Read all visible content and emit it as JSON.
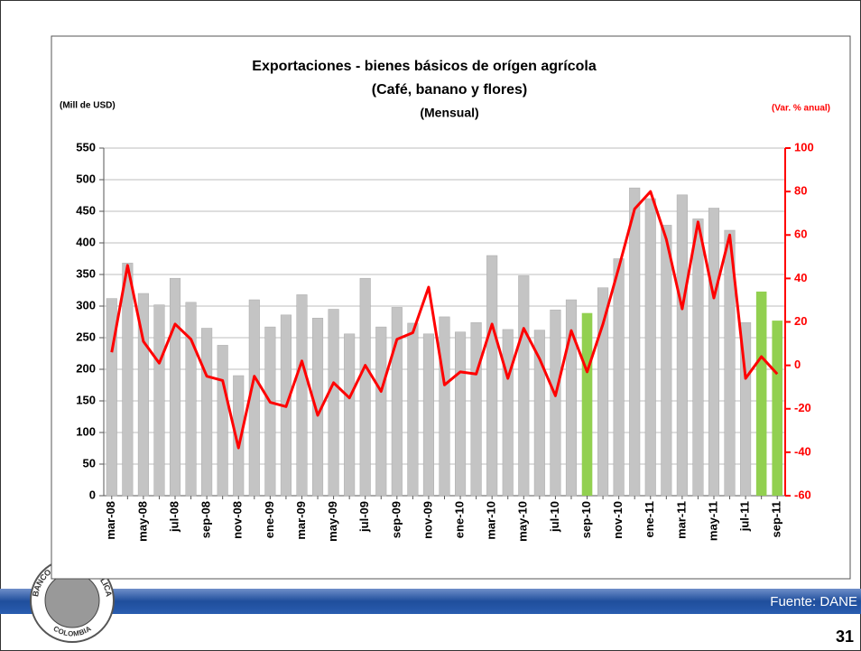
{
  "chart_data": {
    "type": "bar_line",
    "title": "Exportaciones - bienes básicos de orígen agrícola",
    "subtitle": "(Café, banano y flores)",
    "period": "(Mensual)",
    "y_label": "(Mill de USD)",
    "y2_label": "(Var. % anual)",
    "categories": [
      "mar-08",
      null,
      "may-08",
      null,
      "jul-08",
      null,
      "sep-08",
      null,
      "nov-08",
      null,
      "ene-09",
      null,
      "mar-09",
      null,
      "may-09",
      null,
      "jul-09",
      null,
      "sep-09",
      null,
      "nov-09",
      null,
      "ene-10",
      null,
      "mar-10",
      null,
      "may-10",
      null,
      "jul-10",
      null,
      "sep-10",
      null,
      "nov-10",
      null,
      "ene-11",
      null,
      "mar-11",
      null,
      "may-11",
      null,
      "jul-11",
      null,
      "sep-11"
    ],
    "series": [
      {
        "type": "bar",
        "color": "#c4c4c4",
        "highlight_color": "#92d050",
        "highlight": [
          false,
          false,
          false,
          false,
          false,
          false,
          false,
          false,
          false,
          false,
          false,
          false,
          false,
          false,
          false,
          false,
          false,
          false,
          false,
          false,
          false,
          false,
          false,
          false,
          false,
          false,
          false,
          false,
          false,
          false,
          true,
          false,
          false,
          false,
          false,
          false,
          false,
          false,
          false,
          false,
          false,
          true,
          true
        ],
        "values": [
          312,
          368,
          320,
          302,
          344,
          306,
          265,
          238,
          190,
          310,
          267,
          286,
          318,
          281,
          295,
          256,
          344,
          267,
          298,
          273,
          256,
          283,
          259,
          274,
          380,
          263,
          348,
          262,
          294,
          310,
          289,
          329,
          375,
          487,
          470,
          428,
          476,
          438,
          455,
          420,
          274,
          323,
          277
        ]
      },
      {
        "type": "line",
        "color": "#ff0000",
        "axis": "y2",
        "values": [
          6,
          46,
          11,
          1,
          19,
          12,
          -5,
          -7,
          -38,
          -5,
          -17,
          -19,
          2,
          -23,
          -8,
          -15,
          0,
          -12,
          12,
          15,
          36,
          -9,
          -3,
          -4,
          19,
          -6,
          17,
          3,
          -14,
          16,
          -3,
          19,
          45,
          72,
          80,
          58,
          26,
          66,
          31,
          60,
          -6,
          4,
          -4
        ]
      }
    ],
    "ylim": [
      0,
      550
    ],
    "yticks": [
      0,
      50,
      100,
      150,
      200,
      250,
      300,
      350,
      400,
      450,
      500,
      550
    ],
    "y2lim": [
      -60,
      100
    ],
    "y2ticks": [
      -60,
      -40,
      -20,
      0,
      20,
      40,
      60,
      80,
      100
    ],
    "grid": true
  },
  "footer": {
    "source": "Fuente: DANE",
    "page_number": "31",
    "logo_top": "BANCO DE LA REPUBLICA",
    "logo_bottom": "COLOMBIA"
  }
}
